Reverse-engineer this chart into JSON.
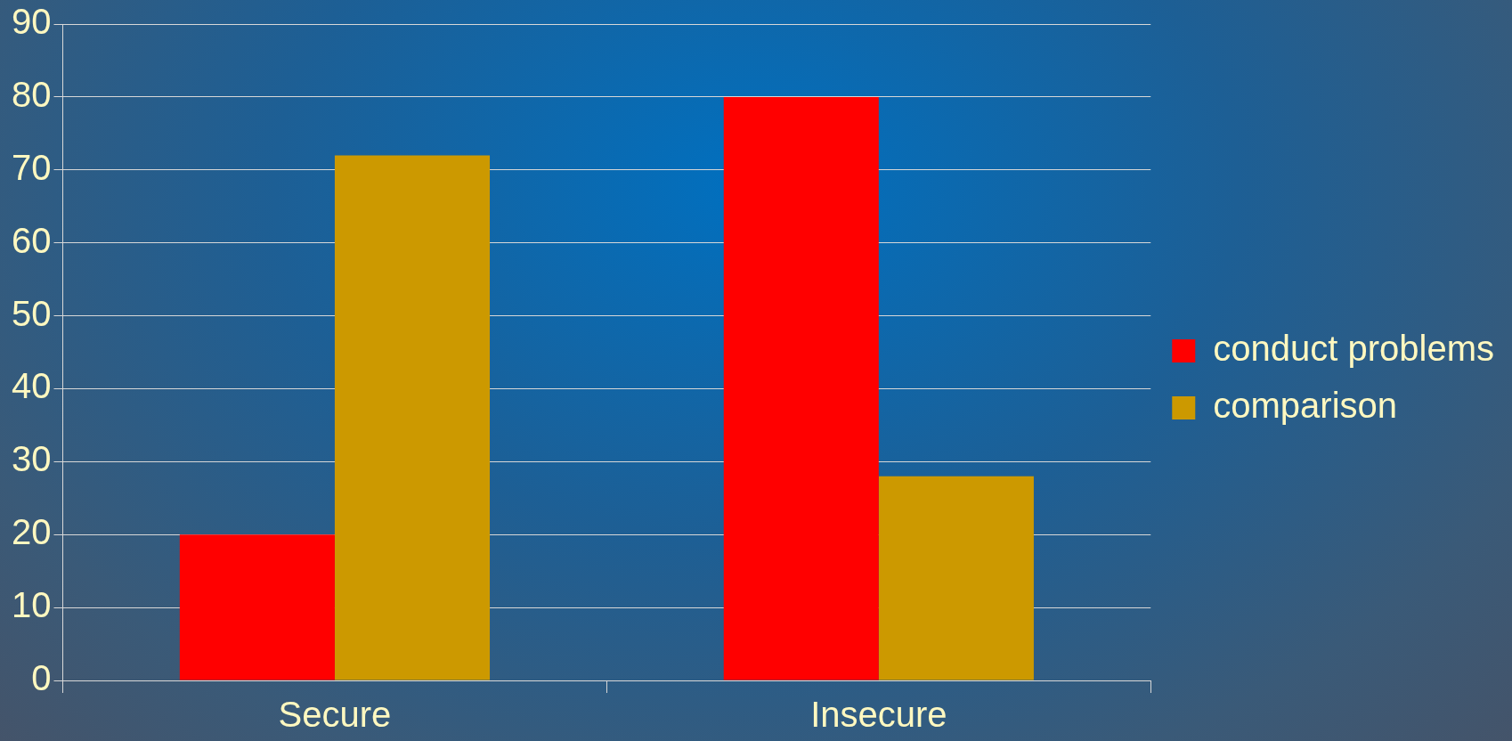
{
  "chart_data": {
    "type": "bar",
    "categories": [
      "Secure",
      "Insecure"
    ],
    "series": [
      {
        "name": "conduct problems",
        "color": "#ff0000",
        "values": [
          20,
          80
        ]
      },
      {
        "name": "comparison",
        "color": "#cc9900",
        "values": [
          72,
          28
        ]
      }
    ],
    "ylim": [
      0,
      90
    ],
    "yticks": [
      0,
      10,
      20,
      30,
      40,
      50,
      60,
      70,
      80,
      90
    ],
    "grid": "y",
    "legend": "right"
  }
}
